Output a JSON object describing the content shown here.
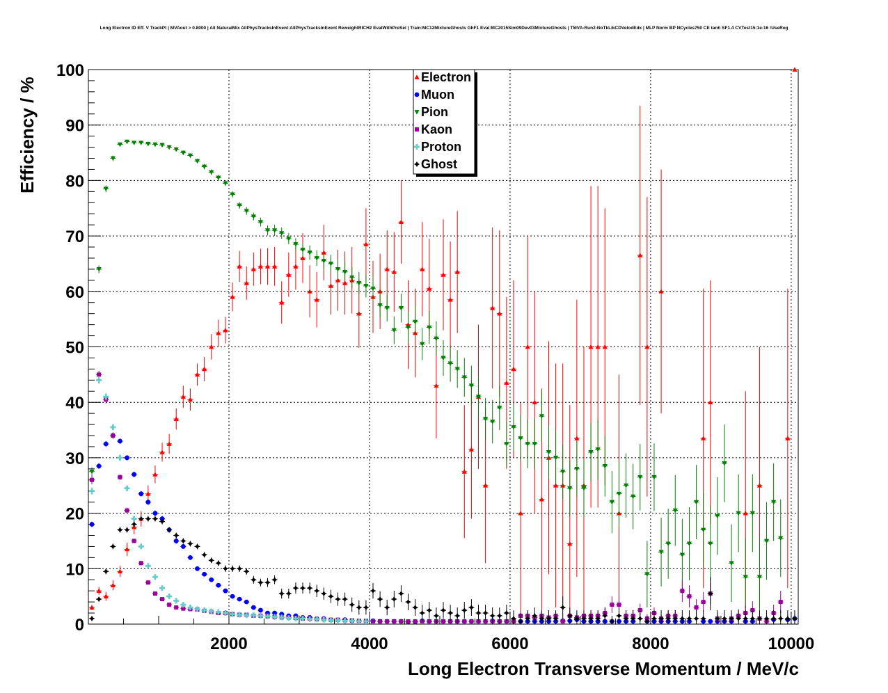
{
  "chart_data": {
    "type": "scatter",
    "title": "Long Electron ID Eff. V TrackPt | MVAout > 0.8000 | All NaturalMix AllPhysTracksInEvent:AllPhysTracksInEvent ReweightRICH2 EvalWithPreSel | Train:MC12MixtureGhosts GhF1 Eval:MC2015Sim09Dev03MixtureGhosts | TMVA-Run2-NoTkLikCDVelodEdx | MLP Norm BP NCycles750 CE tanh SF1.4 CVTest15:1e-16 !UseReg",
    "xlabel": "Long Electron Transverse Momentum / MeV/c",
    "ylabel": "Efficiency / %",
    "xlim": [
      0,
      10100
    ],
    "ylim": [
      0,
      100
    ],
    "xticks": [
      2000,
      4000,
      6000,
      8000,
      10000
    ],
    "yticks": [
      0,
      10,
      20,
      30,
      40,
      50,
      60,
      70,
      80,
      90,
      100
    ],
    "grid": true,
    "legend_position": "top-center",
    "bin_width": 100,
    "x_start": 50,
    "series": [
      {
        "name": "Electron",
        "color": "#ff0000",
        "marker": "triangle-up",
        "y": [
          3,
          6,
          5,
          7,
          9.5,
          13.5,
          17.5,
          19,
          23.5,
          27,
          31,
          32.5,
          37,
          41,
          40.5,
          45,
          46,
          50,
          52.5,
          53,
          59,
          64.5,
          61.5,
          64,
          64.5,
          64.5,
          64.5,
          58,
          63,
          64.5,
          66,
          60,
          58.5,
          67,
          61,
          62,
          61.5,
          62,
          56,
          68.5,
          59,
          60,
          64,
          63.5,
          72.5,
          54,
          52.5,
          64,
          60.5,
          43,
          63,
          58.5,
          63.5,
          27.5,
          31.5,
          41,
          25,
          57,
          56,
          43.5,
          46,
          20,
          50,
          40,
          22.5,
          30,
          25,
          25,
          14.5,
          33.5,
          25,
          50,
          50,
          50,
          null,
          20,
          null,
          null,
          66.5,
          50,
          null,
          60,
          null,
          null,
          null,
          null,
          null,
          33.5,
          40,
          null,
          null,
          null,
          null,
          20,
          null,
          25,
          null,
          null,
          null,
          33.5,
          100
        ],
        "err": [
          0.5,
          0.7,
          0.8,
          0.9,
          1,
          1.2,
          1.3,
          1.4,
          1.5,
          1.6,
          1.7,
          1.8,
          1.9,
          2,
          2,
          2,
          2.2,
          2.3,
          2.4,
          2.4,
          2.6,
          2.8,
          3,
          3,
          3.2,
          3.3,
          3.5,
          3.8,
          4,
          4.2,
          4.5,
          4.7,
          5,
          5,
          5.2,
          5.5,
          5.7,
          6,
          6.2,
          6.5,
          6.5,
          6.8,
          7,
          7.2,
          7.5,
          8,
          8,
          8.5,
          9,
          9.5,
          10,
          10.5,
          11,
          12,
          12.5,
          13,
          14,
          14.5,
          15,
          15.5,
          16,
          20,
          20,
          20,
          20,
          21,
          22,
          22,
          25,
          25,
          25,
          29,
          29,
          25,
          null,
          25,
          null,
          null,
          27,
          27,
          null,
          22,
          null,
          null,
          null,
          null,
          null,
          27,
          22,
          null,
          null,
          null,
          null,
          22,
          null,
          25,
          null,
          null,
          null,
          27,
          0
        ],
        "x_index_offset": 0
      },
      {
        "name": "Muon",
        "color": "#0000ff",
        "marker": "circle",
        "y": [
          18,
          28.5,
          32.5,
          34,
          33,
          30,
          27,
          23.5,
          22,
          20,
          19,
          17,
          15,
          14,
          12,
          10,
          9,
          8,
          7,
          6,
          5,
          4.5,
          4,
          3,
          2.5,
          2,
          2,
          1.8,
          1.5,
          1.5,
          1.2,
          1.2,
          1,
          1,
          0.8,
          0.8,
          0.8,
          0.6,
          0.6,
          0.5,
          0.6,
          0.5,
          0.5,
          0.5,
          0.5,
          0.4,
          0.4,
          0.6,
          0.5,
          0.5,
          0.5,
          0.5,
          0.5,
          0.5,
          0.5,
          0.5,
          0.5,
          0.6,
          0.5,
          0.5,
          0.5,
          0.5,
          0.5,
          0.5,
          0.5,
          0.5,
          0.5,
          0.6,
          0.6,
          0.8,
          0.5,
          0.5,
          0.5,
          0.5,
          0.5,
          0.5,
          0.5,
          0.5,
          null,
          0.5,
          0.5,
          0.5,
          0.5,
          0.5,
          0.5,
          0.5,
          null,
          0.5,
          0.5,
          0.5,
          0.5,
          0.5,
          null,
          0.5,
          0.5,
          null,
          null,
          0.8,
          null,
          0.8,
          1
        ],
        "err": [
          0.5,
          0.5,
          0.5,
          0.5,
          0.5,
          0.5,
          0.5,
          0.5,
          0.5,
          0.5,
          0.5,
          0.5,
          0.5,
          0.4,
          0.4,
          0.4,
          0.4,
          0.3,
          0.3,
          0.3,
          0.3,
          0.3,
          0.3,
          0.2,
          0.2,
          0.2,
          0.2,
          0.2,
          0.2,
          0.2,
          0.2,
          0.2,
          0.2,
          0.2,
          0.2,
          0.2,
          0.2,
          0.2,
          0.2,
          0.2,
          0.2,
          0.2,
          0.2,
          0.2,
          0.2,
          0.2,
          0.2,
          0.2,
          0.2,
          0.2,
          0.2,
          0.2,
          0.2,
          0.2,
          0.2,
          0.2,
          0.2,
          0.2,
          0.2,
          0.2,
          0.2,
          0.2,
          0.2,
          0.2,
          0.2,
          0.2,
          0.2,
          0.3,
          0.3,
          0.4,
          0.3,
          0.3,
          0.3,
          0.3,
          0.3,
          0.3,
          0.3,
          0.3,
          null,
          0.3,
          0.3,
          0.3,
          0.3,
          0.3,
          0.3,
          0.3,
          null,
          0.4,
          0.4,
          0.4,
          0.4,
          0.4,
          null,
          0.4,
          0.4,
          null,
          null,
          0.6,
          null,
          0.8,
          0.8
        ],
        "x_index_offset": 0
      },
      {
        "name": "Pion",
        "color": "#008000",
        "marker": "triangle-down",
        "y": [
          27.5,
          64,
          78.5,
          84,
          86.5,
          87,
          86.8,
          86.8,
          86.6,
          86.5,
          86.4,
          86,
          85.6,
          85,
          84.5,
          83.5,
          82.5,
          81.5,
          80.5,
          79.5,
          77.5,
          75.5,
          74.5,
          73.5,
          72.5,
          71,
          71,
          70.5,
          69.5,
          68.5,
          67.5,
          67,
          66,
          65.5,
          65,
          64,
          63.5,
          62.5,
          61.5,
          61,
          60.5,
          57.5,
          57,
          53,
          57,
          53.5,
          54.5,
          50.5,
          53.5,
          51.5,
          48,
          47,
          46,
          44.5,
          43,
          41,
          37,
          36.5,
          39,
          32.5,
          35.5,
          33.5,
          32.5,
          32.5,
          37.5,
          31,
          30,
          27.5,
          24.5,
          28,
          24.5,
          31,
          31.5,
          28.5,
          22,
          23.5,
          25,
          23,
          26.5,
          9,
          26.5,
          13,
          14.5,
          20.5,
          12.5,
          14.5,
          22,
          17,
          14.5,
          19.5,
          29,
          11,
          20,
          8.5,
          20,
          8.5,
          15,
          22,
          15.5
        ],
        "err": [
          0.8,
          0.7,
          0.6,
          0.5,
          0.4,
          0.4,
          0.4,
          0.4,
          0.4,
          0.4,
          0.4,
          0.4,
          0.4,
          0.4,
          0.4,
          0.4,
          0.5,
          0.5,
          0.5,
          0.5,
          0.6,
          0.6,
          0.7,
          0.7,
          0.8,
          0.9,
          1,
          1,
          1,
          1.1,
          1.2,
          1.3,
          1.4,
          1.5,
          1.6,
          1.7,
          1.8,
          1.9,
          2,
          2.1,
          2.2,
          2.3,
          2.4,
          2.5,
          2.6,
          2.7,
          2.8,
          2.9,
          3,
          3.1,
          3.2,
          3.3,
          3.4,
          3.5,
          3.6,
          3.7,
          3.8,
          3.9,
          4,
          4.1,
          4.2,
          4.3,
          4.4,
          4.5,
          4.6,
          4.7,
          4.8,
          4.9,
          5,
          5.1,
          5.2,
          5.3,
          5.4,
          5.5,
          5.6,
          5.7,
          5.8,
          5.9,
          6,
          6,
          6.1,
          6.2,
          6.3,
          6.4,
          6.5,
          6.6,
          6.7,
          6.8,
          6.9,
          7,
          7,
          7,
          7,
          7,
          7,
          7,
          7,
          7,
          7
        ],
        "x_index_offset": 0
      },
      {
        "name": "Kaon",
        "color": "#990099",
        "marker": "square",
        "y": [
          26,
          45,
          40.5,
          34,
          26.5,
          20.5,
          15,
          11,
          7.5,
          5.5,
          4.5,
          3.5,
          3,
          2.8,
          2.7,
          2.6,
          2.4,
          2.2,
          2,
          2,
          1.8,
          1.7,
          1.7,
          1.5,
          1.5,
          1.4,
          1.3,
          1.2,
          1.2,
          1.1,
          1,
          1,
          0.9,
          0.9,
          0.8,
          0.8,
          0.7,
          0.7,
          0.6,
          0.6,
          0.5,
          0.5,
          0.5,
          0.5,
          0.5,
          0.5,
          0.5,
          0.5,
          0.5,
          0.5,
          0.5,
          0.5,
          0.5,
          0.5,
          0.5,
          0.5,
          0.5,
          0.5,
          0.5,
          0.5,
          0.5,
          1.5,
          1.5,
          1.2,
          1.5,
          1.2,
          1.5,
          0.5,
          1.5,
          1.2,
          1.5,
          1.5,
          1.5,
          2,
          3.5,
          3.5,
          1.5,
          1.5,
          2.5,
          1,
          2,
          1,
          1.5,
          1.5,
          6,
          5,
          3,
          4,
          5.5,
          1,
          null,
          1,
          1.5,
          2,
          2.5,
          1,
          0.5,
          2,
          4
        ],
        "err": [
          0.8,
          0.7,
          0.7,
          0.6,
          0.5,
          0.5,
          0.4,
          0.4,
          0.3,
          0.3,
          0.3,
          0.2,
          0.2,
          0.2,
          0.2,
          0.2,
          0.2,
          0.2,
          0.2,
          0.2,
          0.2,
          0.2,
          0.2,
          0.2,
          0.2,
          0.2,
          0.2,
          0.2,
          0.2,
          0.2,
          0.2,
          0.2,
          0.2,
          0.2,
          0.2,
          0.2,
          0.2,
          0.2,
          0.2,
          0.2,
          0.2,
          0.2,
          0.2,
          0.2,
          0.2,
          0.2,
          0.2,
          0.2,
          0.2,
          0.2,
          0.2,
          0.2,
          0.2,
          0.2,
          0.2,
          0.2,
          0.2,
          0.2,
          0.2,
          0.2,
          0.2,
          0.8,
          0.8,
          0.8,
          0.8,
          0.8,
          0.8,
          0.5,
          0.8,
          0.8,
          0.8,
          0.8,
          0.8,
          1,
          1.5,
          1.5,
          1,
          1,
          1.2,
          0.8,
          1,
          0.8,
          1,
          1,
          2,
          2,
          1.5,
          1.8,
          2,
          1,
          null,
          1,
          1.2,
          1.4,
          1.6,
          1,
          0.8,
          1.5,
          2
        ],
        "x_index_offset": 0
      },
      {
        "name": "Proton",
        "color": "#66cccc",
        "marker": "cross",
        "y": [
          24,
          44,
          41,
          35.5,
          30,
          24.5,
          19,
          14,
          10.5,
          8.5,
          6.5,
          5,
          4.2,
          3.5,
          3,
          2.7,
          2.5,
          2.3,
          2.2,
          2,
          1.8,
          1.7,
          1.6,
          1.6,
          1.5,
          1.4,
          1.3,
          1.2,
          1.1,
          1,
          1,
          0.9,
          0.9,
          0.8,
          0.7,
          0.7,
          0.6,
          0.6,
          0.5,
          0.5
        ],
        "err": [
          0.7,
          0.7,
          0.7,
          0.6,
          0.6,
          0.5,
          0.5,
          0.4,
          0.4,
          0.3,
          0.3,
          0.3,
          0.3,
          0.2,
          0.2,
          0.2,
          0.2,
          0.2,
          0.2,
          0.2,
          0.2,
          0.2,
          0.2,
          0.2,
          0.2,
          0.2,
          0.2,
          0.2,
          0.2,
          0.2,
          0.2,
          0.2,
          0.2,
          0.2,
          0.2,
          0.2,
          0.2,
          0.2,
          0.2,
          0.2
        ],
        "x_index_offset": 0
      },
      {
        "name": "Ghost",
        "color": "#000000",
        "marker": "star",
        "y": [
          1,
          4.5,
          9.5,
          14,
          17,
          17,
          18,
          19,
          19,
          19,
          18.5,
          17,
          16,
          15,
          14.5,
          14,
          12.5,
          11.5,
          11,
          10,
          10,
          10,
          9.5,
          8,
          7.5,
          7.5,
          8,
          5.5,
          5.5,
          6.5,
          6.5,
          6.5,
          6,
          5.5,
          5,
          4.5,
          4.5,
          3.5,
          3,
          3,
          6,
          4.5,
          3,
          4.5,
          5.5,
          4,
          3,
          2,
          2.5,
          1.5,
          2.5,
          2,
          1.5,
          2.5,
          3,
          2,
          2,
          1.5,
          1.5,
          2,
          1,
          0.5,
          1,
          1.5,
          1,
          1,
          1,
          3,
          1.5,
          1,
          1,
          1,
          1,
          1.5,
          0.5,
          1.5,
          1,
          1,
          1,
          0.5,
          1,
          1,
          1,
          1,
          1,
          1,
          1,
          1,
          5.5,
          1,
          1,
          1,
          1,
          1,
          1,
          1,
          1,
          1,
          1,
          1,
          1
        ],
        "err": [
          0.3,
          0.4,
          0.5,
          0.5,
          0.5,
          0.5,
          0.5,
          0.5,
          0.5,
          0.5,
          0.5,
          0.5,
          0.5,
          0.5,
          0.5,
          0.5,
          0.5,
          0.5,
          0.5,
          0.6,
          0.6,
          0.6,
          0.6,
          0.7,
          0.7,
          0.8,
          0.8,
          0.9,
          0.9,
          1,
          1,
          1,
          1.1,
          1.1,
          1.2,
          1.2,
          1.2,
          1.3,
          1.3,
          1.3,
          1.4,
          1.4,
          1.4,
          1.5,
          1.5,
          1.5,
          1.5,
          1.5,
          1.5,
          1.5,
          1.5,
          1.5,
          1.5,
          1.5,
          1.5,
          1.5,
          1.5,
          1.5,
          1.5,
          1.5,
          1.5,
          1.5,
          1.5,
          1.5,
          1.5,
          1.5,
          1.5,
          2,
          1.5,
          1.5,
          1.5,
          1.5,
          1.5,
          1.5,
          1,
          1.5,
          1.5,
          1.5,
          1.5,
          1,
          1.5,
          1.5,
          1.5,
          1.5,
          1.5,
          1.5,
          1.5,
          1.5,
          3,
          1.5,
          1.5,
          1.5,
          1.5,
          1.5,
          1.5,
          1.5,
          1.5,
          1.5,
          1.5,
          1.5,
          1.5
        ],
        "x_index_offset": 0
      }
    ]
  }
}
